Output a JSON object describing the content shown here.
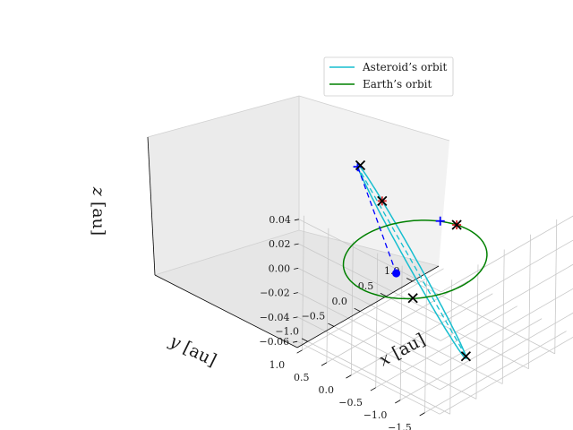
{
  "chart_data": {
    "type": "line",
    "projection": "3d",
    "title": "",
    "xlabel": "$x$ [au]",
    "ylabel": "$y$ [au]",
    "zlabel": "$z$ [au]",
    "xlim": [
      -1.2,
      1.5
    ],
    "ylim": [
      -1.8,
      1.1
    ],
    "zlim": [
      -0.065,
      0.045
    ],
    "x_ticks": [
      -1.0,
      -0.5,
      0.0,
      0.5,
      1.0
    ],
    "y_ticks": [
      -1.5,
      -1.0,
      -0.5,
      0.0,
      0.5,
      1.0
    ],
    "z_ticks": [
      -0.06,
      -0.04,
      -0.02,
      0.0,
      0.02,
      0.04
    ],
    "x_tick_labels": [
      "−1.0",
      "−0.5",
      "0.0",
      "0.5",
      "1.0"
    ],
    "y_tick_labels": [
      "−1.5",
      "−1.0",
      "−0.5",
      "0.0",
      "0.5",
      "1.0"
    ],
    "z_tick_labels": [
      "−0.06",
      "−0.04",
      "−0.02",
      "0.00",
      "0.02",
      "0.04"
    ],
    "grid": true,
    "legend": "top-right",
    "series": [
      {
        "name": "Asteroid’s orbit",
        "color": "#17becf",
        "kind": "ellipse",
        "perihelion": [
          0.05,
          -1.0,
          -0.06
        ],
        "aphelion": [
          0.25,
          1.45,
          0.04
        ],
        "semi_minor": 0.12,
        "minor_axis_tilt": 0.02
      },
      {
        "name": "Earth’s orbit",
        "color": "#008000",
        "kind": "circle",
        "radius": 1.0,
        "z": 0.0
      }
    ],
    "annotations": [
      {
        "type": "line",
        "style": "dashed",
        "color": "#17becf",
        "from": [
          0.05,
          -1.0,
          -0.06
        ],
        "to": [
          0.25,
          1.45,
          0.04
        ]
      },
      {
        "type": "line",
        "style": "dashed",
        "color": "#0000ff",
        "from": [
          0.02,
          0.4,
          -0.02
        ],
        "to": [
          0.25,
          1.45,
          0.04
        ]
      },
      {
        "type": "marker",
        "marker": "dot",
        "color": "#0000ff",
        "point": [
          0.02,
          0.4,
          -0.02
        ]
      },
      {
        "type": "marker",
        "marker": "plus",
        "color": "#0000ff",
        "point": [
          0.25,
          1.45,
          0.04
        ]
      },
      {
        "type": "marker",
        "marker": "plus",
        "color": "#0000ff",
        "point": [
          0.9,
          0.45,
          0.0
        ]
      },
      {
        "type": "marker",
        "marker": "plus",
        "color": "#d62728",
        "point": [
          0.98,
          0.2,
          0.0
        ]
      },
      {
        "type": "marker",
        "marker": "plus",
        "color": "#d62728",
        "point": [
          0.3,
          1.0,
          0.02
        ]
      },
      {
        "type": "marker",
        "marker": "x",
        "color": "#000000",
        "point": [
          0.05,
          -1.0,
          -0.06
        ]
      },
      {
        "type": "marker",
        "marker": "x",
        "color": "#000000",
        "point": [
          0.3,
          1.45,
          0.04
        ]
      },
      {
        "type": "marker",
        "marker": "x",
        "color": "#000000",
        "point": [
          0.98,
          0.2,
          0.0
        ]
      },
      {
        "type": "marker",
        "marker": "x",
        "color": "#000000",
        "point": [
          -0.7,
          -0.7,
          0.0
        ]
      },
      {
        "type": "marker",
        "marker": "x",
        "color": "#000000",
        "point": [
          0.3,
          1.0,
          0.02
        ]
      }
    ]
  }
}
